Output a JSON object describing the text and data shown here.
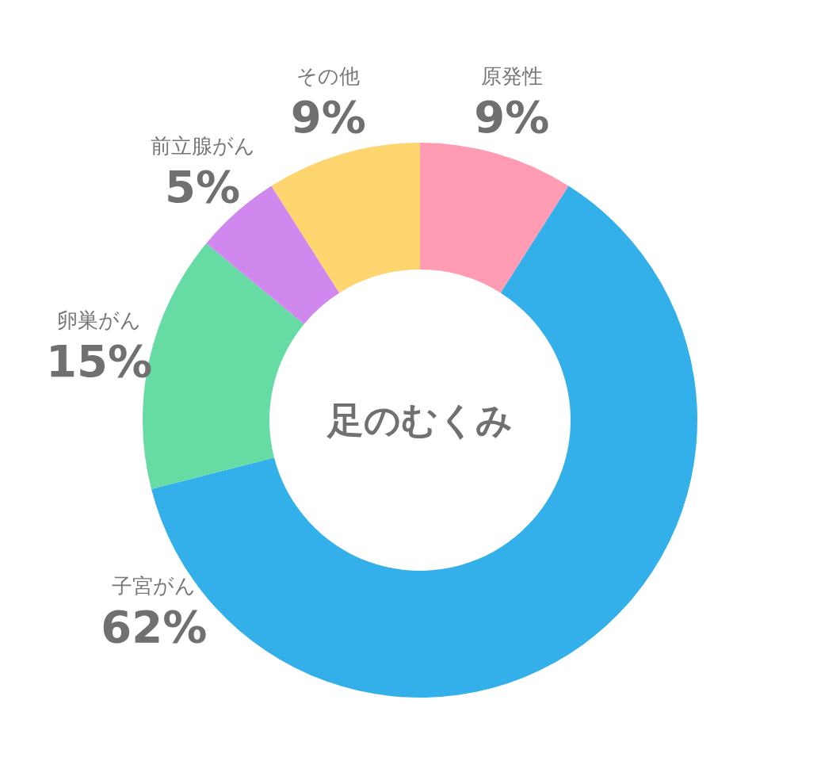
{
  "chart_data": {
    "type": "donut",
    "title": "足のむくみ",
    "categories": [
      "原発性",
      "子宮がん",
      "卵巣がん",
      "前立腺がん",
      "その他"
    ],
    "values": [
      9,
      62,
      15,
      5,
      9
    ],
    "value_labels": [
      "9%",
      "62%",
      "15%",
      "5%",
      "9%"
    ],
    "colors": [
      "#ff9bb3",
      "#33b0ea",
      "#66dca4",
      "#d088ee",
      "#ffd570"
    ]
  }
}
